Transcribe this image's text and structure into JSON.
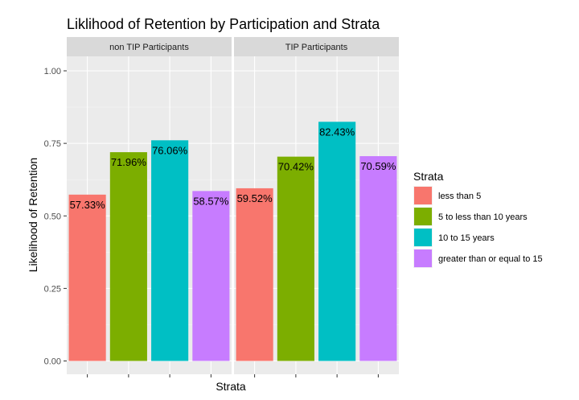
{
  "chart_data": {
    "type": "bar",
    "title": "Liklihood of Retention by Participation and Strata",
    "xlabel": "Strata",
    "ylabel": "Likelihood of Retention",
    "ylim": [
      0,
      1.05
    ],
    "y_ticks": [
      "0.00",
      "0.25",
      "0.50",
      "0.75",
      "1.00"
    ],
    "y_tick_values": [
      0,
      0.25,
      0.5,
      0.75,
      1.0
    ],
    "grid": true,
    "legend": {
      "title": "Strata",
      "position": "right",
      "entries": [
        "less than 5",
        "5 to less than 10 years",
        "10 to 15 years",
        "greater than or equal to 15"
      ]
    },
    "colors": [
      "#F8766D",
      "#7CAE00",
      "#00BFC4",
      "#C77CFF"
    ],
    "panels": [
      {
        "name": "non TIP Participants",
        "categories": [
          "less than 5",
          "5 to less than 10 years",
          "10 to 15 years",
          "greater than or equal to 15"
        ],
        "values": [
          0.5733,
          0.7196,
          0.7606,
          0.5857
        ],
        "labels": [
          "57.33%",
          "71.96%",
          "76.06%",
          "58.57%"
        ]
      },
      {
        "name": "TIP Participants",
        "categories": [
          "less than 5",
          "5 to less than 10 years",
          "10 to 15 years",
          "greater than or equal to 15"
        ],
        "values": [
          0.5952,
          0.7042,
          0.8243,
          0.7059
        ],
        "labels": [
          "59.52%",
          "70.42%",
          "82.43%",
          "70.59%"
        ]
      }
    ]
  }
}
